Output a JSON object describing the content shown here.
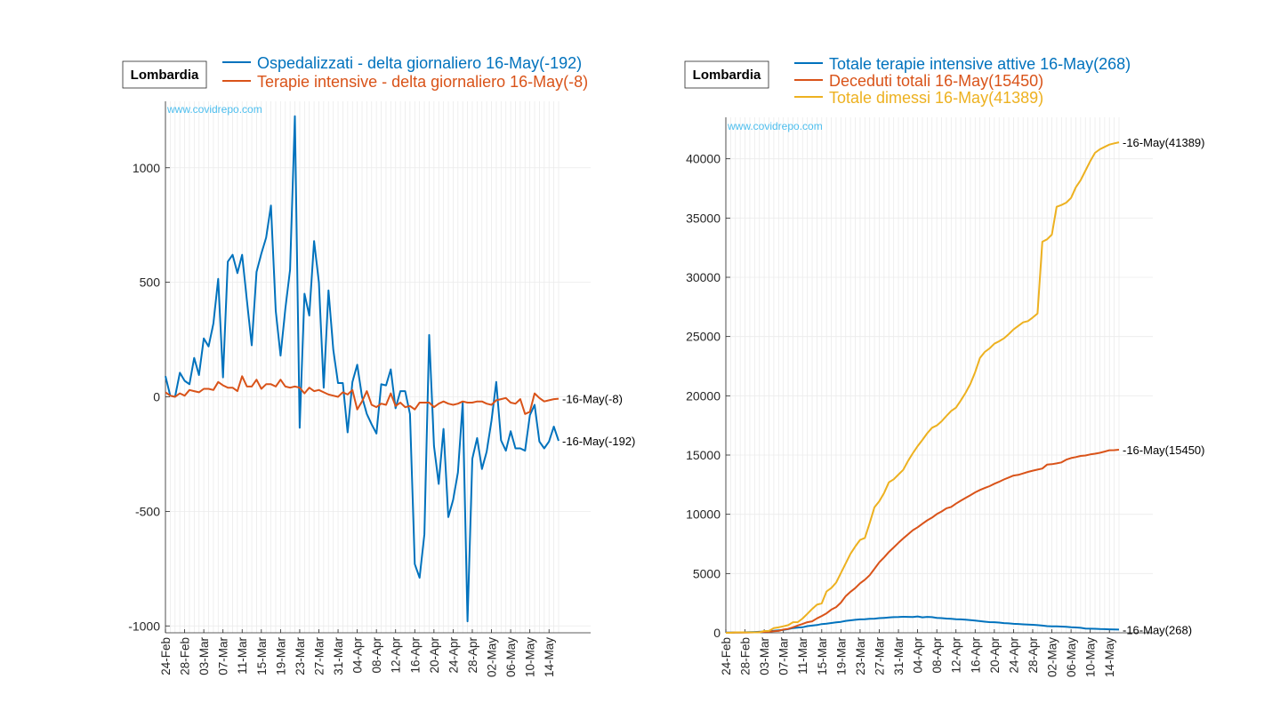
{
  "colors": {
    "blue": "#0072BD",
    "orange": "#D95319",
    "yellow": "#EDB120",
    "watermark": "#4DBEEE",
    "grid": "#ebebeb",
    "axis": "#262626"
  },
  "chart_data": [
    {
      "type": "line",
      "region_label": "Lombardia",
      "watermark": "www.covidrepo.com",
      "x_tick_labels": [
        "24-Feb",
        "28-Feb",
        "03-Mar",
        "07-Mar",
        "11-Mar",
        "15-Mar",
        "19-Mar",
        "23-Mar",
        "27-Mar",
        "31-Mar",
        "04-Apr",
        "08-Apr",
        "12-Apr",
        "16-Apr",
        "20-Apr",
        "24-Apr",
        "28-Apr",
        "02-May",
        "06-May",
        "10-May",
        "14-May"
      ],
      "ylim": [
        -1030,
        1290
      ],
      "y_ticks": [
        -1000,
        -500,
        0,
        500,
        1000
      ],
      "grid": true,
      "legend_position": "top",
      "series": [
        {
          "name": "Ospedalizzati - delta giornaliero 16-May(-192)",
          "color": "#0072BD",
          "end_label": "16-May(-192)",
          "values": [
            90,
            5,
            0,
            105,
            70,
            55,
            170,
            95,
            255,
            220,
            320,
            515,
            85,
            590,
            620,
            540,
            620,
            420,
            225,
            545,
            625,
            695,
            835,
            375,
            180,
            385,
            555,
            1225,
            -135,
            450,
            355,
            680,
            500,
            40,
            465,
            205,
            60,
            60,
            -155,
            65,
            140,
            0,
            -75,
            -120,
            -160,
            55,
            50,
            120,
            -50,
            25,
            25,
            -75,
            -730,
            -790,
            -600,
            270,
            -215,
            -380,
            -140,
            -525,
            -450,
            -330,
            -25,
            -980,
            -270,
            -180,
            -315,
            -240,
            -105,
            65,
            -190,
            -235,
            -150,
            -225,
            -225,
            -235,
            -80,
            -35,
            -195,
            -225,
            -195,
            -130,
            -192
          ]
        },
        {
          "name": "Terapie intensive - delta giornaliero 16-May(-8)",
          "color": "#D95319",
          "end_label": "16-May(-8)",
          "values": [
            20,
            5,
            0,
            15,
            5,
            30,
            25,
            20,
            35,
            35,
            30,
            65,
            50,
            40,
            40,
            25,
            90,
            45,
            45,
            75,
            35,
            55,
            55,
            45,
            75,
            45,
            40,
            45,
            40,
            15,
            40,
            25,
            30,
            20,
            10,
            5,
            0,
            20,
            10,
            30,
            -55,
            -20,
            25,
            -35,
            -45,
            -30,
            -35,
            15,
            -40,
            -25,
            -45,
            -40,
            -55,
            -25,
            -25,
            -25,
            -45,
            -30,
            -20,
            -30,
            -35,
            -30,
            -20,
            -25,
            -25,
            -20,
            -20,
            -30,
            -35,
            -15,
            -10,
            -5,
            -25,
            -30,
            -10,
            -75,
            -65,
            15,
            -5,
            -20,
            -15,
            -10,
            -8
          ]
        }
      ]
    },
    {
      "type": "line",
      "region_label": "Lombardia",
      "watermark": "www.covidrepo.com",
      "x_tick_labels": [
        "24-Feb",
        "28-Feb",
        "03-Mar",
        "07-Mar",
        "11-Mar",
        "15-Mar",
        "19-Mar",
        "23-Mar",
        "27-Mar",
        "31-Mar",
        "04-Apr",
        "08-Apr",
        "12-Apr",
        "16-Apr",
        "20-Apr",
        "24-Apr",
        "28-Apr",
        "02-May",
        "06-May",
        "10-May",
        "14-May"
      ],
      "ylim": [
        0,
        43500
      ],
      "y_ticks": [
        0,
        5000,
        10000,
        15000,
        20000,
        25000,
        30000,
        35000,
        40000
      ],
      "grid": true,
      "legend_position": "top",
      "series": [
        {
          "name": "Totale terapie intensive attive 16-May(268)",
          "color": "#0072BD",
          "end_label": "16-May(268)",
          "values": [
            19,
            25,
            27,
            31,
            47,
            55,
            67,
            84,
            106,
            127,
            167,
            209,
            244,
            309,
            399,
            440,
            466,
            560,
            605,
            650,
            732,
            767,
            823,
            879,
            925,
            1006,
            1050,
            1093,
            1135,
            1142,
            1183,
            1194,
            1236,
            1263,
            1292,
            1319,
            1330,
            1351,
            1343,
            1324,
            1381,
            1305,
            1343,
            1317,
            1263,
            1236,
            1202,
            1174,
            1143,
            1133,
            1104,
            1074,
            1032,
            983,
            938,
            903,
            889,
            863,
            818,
            797,
            756,
            740,
            712,
            688,
            673,
            646,
            611,
            563,
            547,
            537,
            523,
            504,
            467,
            449,
            422,
            360,
            345,
            335,
            318,
            305,
            289,
            280,
            268
          ]
        },
        {
          "name": "Deceduti totali 16-May(15450)",
          "color": "#D95319",
          "end_label": "16-May(15450)",
          "values": [
            6,
            9,
            14,
            17,
            23,
            31,
            38,
            55,
            73,
            98,
            135,
            154,
            267,
            333,
            468,
            617,
            744,
            890,
            966,
            1218,
            1420,
            1640,
            1959,
            2168,
            2549,
            3095,
            3456,
            3776,
            4178,
            4474,
            4861,
            5402,
            5944,
            6360,
            6818,
            7199,
            7593,
            7960,
            8311,
            8656,
            8905,
            9202,
            9484,
            9722,
            10022,
            10238,
            10511,
            10621,
            10901,
            11142,
            11377,
            11608,
            11851,
            12050,
            12214,
            12376,
            12579,
            12740,
            12941,
            13106,
            13269,
            13325,
            13449,
            13575,
            13679,
            13772,
            13860,
            14189,
            14231,
            14294,
            14380,
            14611,
            14745,
            14827,
            14924,
            14966,
            15054,
            15116,
            15185,
            15296,
            15403,
            15411,
            15450
          ]
        },
        {
          "name": "Totale dimessi 16-May(41389)",
          "color": "#EDB120",
          "end_label": "16-May(41389)",
          "values": [
            0,
            0,
            40,
            40,
            40,
            40,
            40,
            40,
            149,
            160,
            400,
            460,
            550,
            646,
            896,
            900,
            1200,
            1600,
            2011,
            2368,
            2481,
            3488,
            3778,
            4235,
            5050,
            5865,
            6657,
            7281,
            7839,
            8001,
            9255,
            10600,
            11100,
            11800,
            12700,
            12950,
            13350,
            13750,
            14498,
            15147,
            15752,
            16278,
            16840,
            17300,
            17501,
            17850,
            18300,
            18720,
            19000,
            19600,
            20250,
            21000,
            22000,
            23200,
            23700,
            24000,
            24400,
            24600,
            24850,
            25200,
            25600,
            25900,
            26200,
            26300,
            26600,
            26950,
            33000,
            33200,
            33600,
            35950,
            36100,
            36300,
            36700,
            37600,
            38200,
            39000,
            39800,
            40500,
            40800,
            41000,
            41200,
            41300,
            41389
          ]
        }
      ]
    }
  ]
}
